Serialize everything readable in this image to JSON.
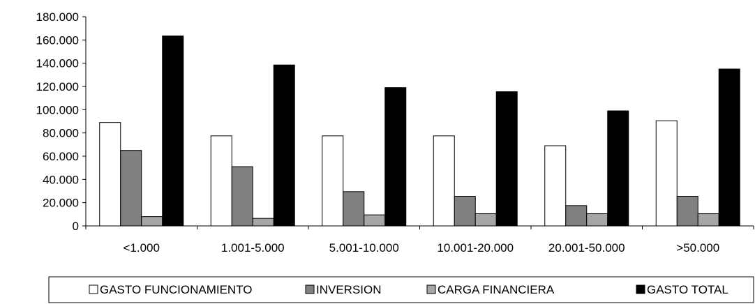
{
  "chart_data": {
    "type": "bar",
    "categories": [
      "<1.000",
      "1.001-5.000",
      "5.001-10.000",
      "10.001-20.000",
      "20.001-50.000",
      ">50.000"
    ],
    "series": [
      {
        "name": "GASTO FUNCIONAMIENTO",
        "color": "#ffffff",
        "values": [
          89000,
          77500,
          77500,
          77500,
          69000,
          90500
        ]
      },
      {
        "name": "INVERSION",
        "color": "#808080",
        "values": [
          65000,
          51000,
          29500,
          25500,
          17500,
          25500
        ]
      },
      {
        "name": "CARGA FINANCIERA",
        "color": "#a6a6a6",
        "values": [
          8000,
          6500,
          9500,
          10500,
          10500,
          10500
        ]
      },
      {
        "name": "GASTO TOTAL",
        "color": "#000000",
        "values": [
          163500,
          138500,
          119000,
          115500,
          99000,
          135000
        ]
      }
    ],
    "ylim": [
      0,
      180000
    ],
    "yticks": [
      "0",
      "20.000",
      "40.000",
      "60.000",
      "80.000",
      "100.000",
      "120.000",
      "140.000",
      "160.000",
      "180.000"
    ],
    "title": "",
    "xlabel": "",
    "ylabel": "",
    "grid": false,
    "legend_position": "bottom"
  }
}
